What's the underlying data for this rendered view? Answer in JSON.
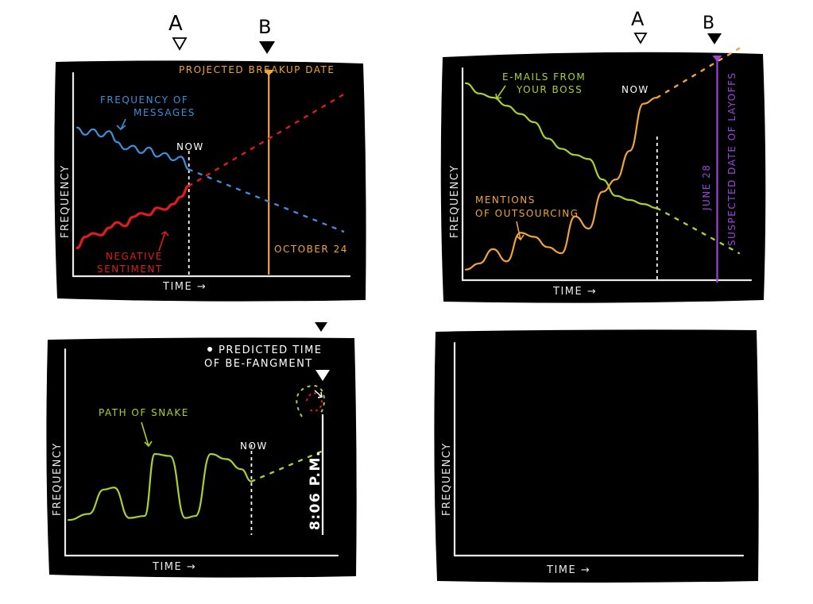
{
  "colors": {
    "panel": "#000000",
    "axis": "#e8e8e8",
    "blue": "#3b8fd8",
    "red": "#e11b1b",
    "orange": "#f0a43a",
    "green": "#a8d22e",
    "purple": "#9b45d8",
    "white": "#ffffff"
  },
  "header_markers": {
    "a_label": "A",
    "b_label": "B"
  },
  "chart_data": [
    {
      "type": "line",
      "title": "",
      "xlabel": "TIME →",
      "ylabel": "FREQUENCY",
      "now_label": "NOW",
      "marker_label": "PROJECTED BREAKUP DATE",
      "marker_date": "OCTOBER 24",
      "series": [
        {
          "name": "FREQUENCY OF MESSAGES",
          "color": "blue",
          "x": [
            0,
            3,
            6,
            9,
            12,
            15,
            18,
            21,
            24,
            27,
            30,
            33,
            36,
            39,
            42
          ],
          "values": [
            78,
            74,
            77,
            73,
            76,
            70,
            66,
            68,
            64,
            67,
            62,
            64,
            60,
            62,
            55
          ],
          "projection": {
            "x": [
              42,
              100
            ],
            "values": [
              55,
              21
            ]
          }
        },
        {
          "name": "NEGATIVE SENTIMENT",
          "color": "red",
          "x": [
            0,
            3,
            6,
            9,
            12,
            15,
            18,
            21,
            24,
            27,
            30,
            33,
            36,
            39,
            42
          ],
          "values": [
            12,
            18,
            20,
            19,
            23,
            26,
            24,
            29,
            31,
            30,
            34,
            33,
            36,
            40,
            46
          ],
          "projection": {
            "x": [
              42,
              100
            ],
            "values": [
              46,
              96
            ]
          }
        }
      ],
      "now_x": 42,
      "marker_x": 72,
      "xlim": [
        0,
        100
      ],
      "ylim": [
        0,
        100
      ]
    },
    {
      "type": "line",
      "title": "",
      "xlabel": "TIME →",
      "ylabel": "FREQUENCY",
      "now_label": "NOW",
      "marker_label": "SUSPECTED DATE OF LAYOFFS",
      "marker_date": "JUNE 28",
      "series": [
        {
          "name": "E-MAILS FROM YOUR BOSS",
          "color": "green",
          "x": [
            0,
            5,
            10,
            15,
            20,
            25,
            30,
            35,
            40,
            45,
            50,
            55,
            60,
            65,
            70
          ],
          "values": [
            95,
            90,
            88,
            84,
            80,
            76,
            68,
            63,
            60,
            58,
            48,
            40,
            38,
            36,
            34
          ],
          "projection": {
            "x": [
              70,
              100
            ],
            "values": [
              34,
              12
            ]
          }
        },
        {
          "name": "MENTIONS OF OUTSOURCING",
          "color": "orange",
          "x": [
            0,
            5,
            10,
            15,
            20,
            25,
            30,
            35,
            40,
            45,
            50,
            55,
            60,
            65,
            70
          ],
          "values": [
            4,
            7,
            14,
            8,
            22,
            20,
            15,
            12,
            30,
            24,
            42,
            48,
            62,
            85,
            88
          ],
          "projection": {
            "x": [
              70,
              100
            ],
            "values": [
              88,
              112
            ]
          }
        }
      ],
      "now_x": 70,
      "marker_x": 92,
      "xlim": [
        0,
        100
      ],
      "ylim": [
        0,
        100
      ]
    },
    {
      "type": "line",
      "title": "",
      "xlabel": "TIME →",
      "ylabel": "FREQUENCY",
      "now_label": "NOW",
      "marker_label": "PREDICTED TIME OF BE-FANGMENT",
      "marker_date": "8:06 P.M.",
      "series": [
        {
          "name": "PATH OF SNAKE",
          "color": "green",
          "x": [
            0,
            8,
            14,
            18,
            24,
            30,
            34,
            40,
            46,
            50,
            56,
            62,
            68,
            72
          ],
          "values": [
            10,
            16,
            40,
            42,
            12,
            14,
            75,
            73,
            12,
            14,
            75,
            70,
            60,
            48
          ],
          "projection": {
            "x": [
              72,
              100
            ],
            "values": [
              48,
              78
            ]
          }
        }
      ],
      "now_x": 72,
      "marker_x": 100,
      "xlim": [
        0,
        100
      ],
      "ylim": [
        0,
        100
      ]
    },
    {
      "type": "line",
      "title": "",
      "xlabel": "TIME →",
      "ylabel": "FREQUENCY",
      "series": [],
      "xlim": [
        0,
        100
      ],
      "ylim": [
        0,
        100
      ]
    }
  ]
}
